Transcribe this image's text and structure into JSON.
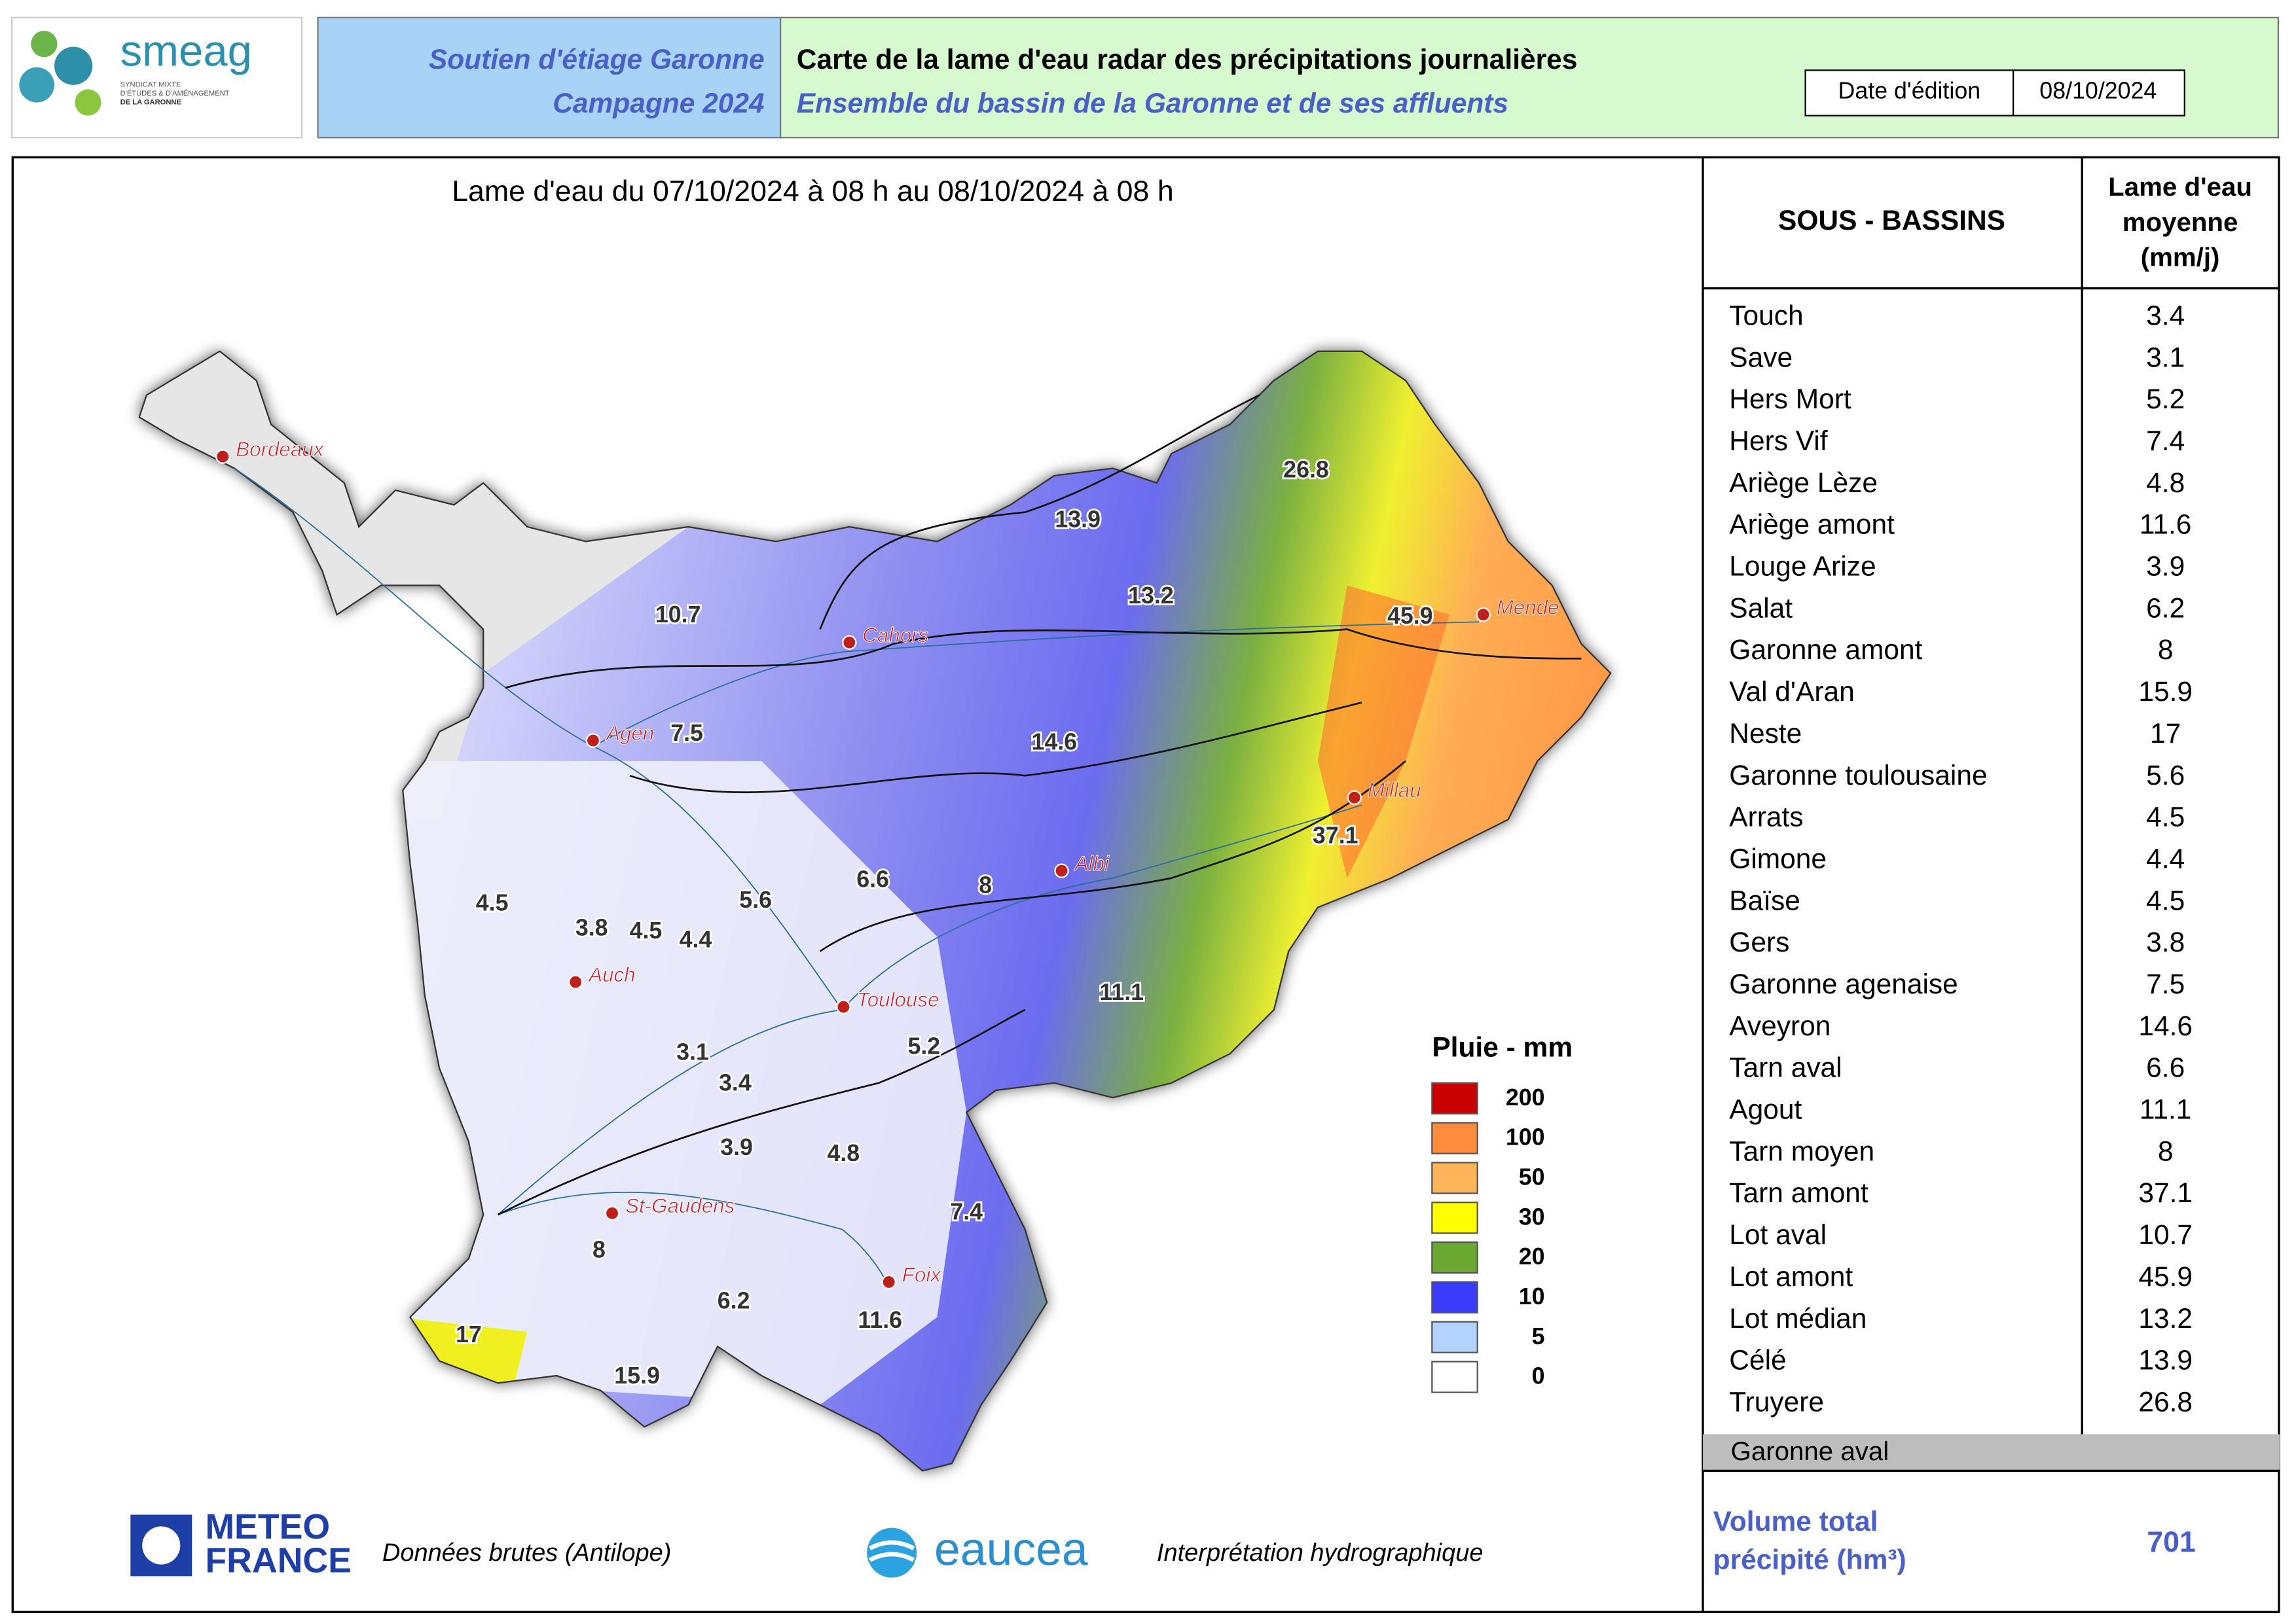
{
  "header": {
    "logo_name": "smeag",
    "logo_tagline": [
      "SYNDICAT MIXTE",
      "D'ÉTUDES & D'AMÉNAGEMENT",
      "DE LA GARONNE"
    ],
    "org_line1": "Soutien d'étiage Garonne",
    "org_line2": "Campagne 2024",
    "title": "Carte de la lame d'eau radar des précipitations journalières",
    "subtitle": "Ensemble du bassin de la Garonne et de ses affluents",
    "date_label": "Date d'édition",
    "date": "08/10/2024"
  },
  "map": {
    "period": "Lame d'eau du 07/10/2024  à 08 h au  08/10/2024  à 08 h",
    "cities": [
      "Bordeaux",
      "Cahors",
      "Agen",
      "Mende",
      "Millau",
      "Albi",
      "Auch",
      "Toulouse",
      "St-Gaudens",
      "Foix"
    ],
    "labels": [
      "26.8",
      "13.9",
      "13.2",
      "10.7",
      "45.9",
      "7.5",
      "14.6",
      "37.1",
      "6.6",
      "8",
      "4.5",
      "5.6",
      "3.8",
      "4.5",
      "4.4",
      "11.1",
      "5.2",
      "3.1",
      "3.4",
      "3.9",
      "4.8",
      "7.4",
      "8",
      "6.2",
      "11.6",
      "17",
      "15.9"
    ],
    "legend": {
      "title": "Pluie - mm",
      "items": [
        {
          "label": 200,
          "color": "#c80000"
        },
        {
          "label": 100,
          "color": "#ff8c3c"
        },
        {
          "label": 50,
          "color": "#ffb45a"
        },
        {
          "label": 30,
          "color": "#ffff00"
        },
        {
          "label": 20,
          "color": "#6aa832"
        },
        {
          "label": 10,
          "color": "#3c3cff"
        },
        {
          "label": 5,
          "color": "#b4d2ff"
        },
        {
          "label": 0,
          "color": "#ffffff"
        }
      ]
    }
  },
  "table": {
    "basin_header": "SOUS - BASSINS",
    "value_header": [
      "Lame d'eau",
      "moyenne",
      "(mm/j)"
    ],
    "rows": [
      [
        "Touch",
        3.4
      ],
      [
        "Save",
        3.1
      ],
      [
        "Hers Mort",
        5.2
      ],
      [
        "Hers Vif",
        7.4
      ],
      [
        "Ariège Lèze",
        4.8
      ],
      [
        "Ariège amont",
        11.6
      ],
      [
        "Louge Arize",
        3.9
      ],
      [
        "Salat",
        6.2
      ],
      [
        "Garonne amont",
        8
      ],
      [
        "Val d'Aran",
        15.9
      ],
      [
        "Neste",
        17
      ],
      [
        "Garonne toulousaine",
        5.6
      ],
      [
        "Arrats",
        4.5
      ],
      [
        "Gimone",
        4.4
      ],
      [
        "Baïse",
        4.5
      ],
      [
        "Gers",
        3.8
      ],
      [
        "Garonne agenaise",
        7.5
      ],
      [
        "Aveyron",
        14.6
      ],
      [
        "Tarn aval",
        6.6
      ],
      [
        "Agout",
        11.1
      ],
      [
        "Tarn moyen",
        8
      ],
      [
        "Tarn amont",
        37.1
      ],
      [
        "Lot aval",
        10.7
      ],
      [
        "Lot amont",
        45.9
      ],
      [
        "Lot médian",
        13.2
      ],
      [
        "Célé",
        13.9
      ],
      [
        "Truyere",
        26.8
      ]
    ],
    "grey_row": "Garonne aval",
    "total_label": [
      "Volume total",
      "précipité (hm³)"
    ],
    "total_value": 701
  },
  "footer": {
    "meteo": [
      "METEO",
      "FRANCE"
    ],
    "meteo_note": "Données brutes (Antilope)",
    "eaucea": "eaucea",
    "eaucea_note": "Interprétation hydrographique"
  }
}
